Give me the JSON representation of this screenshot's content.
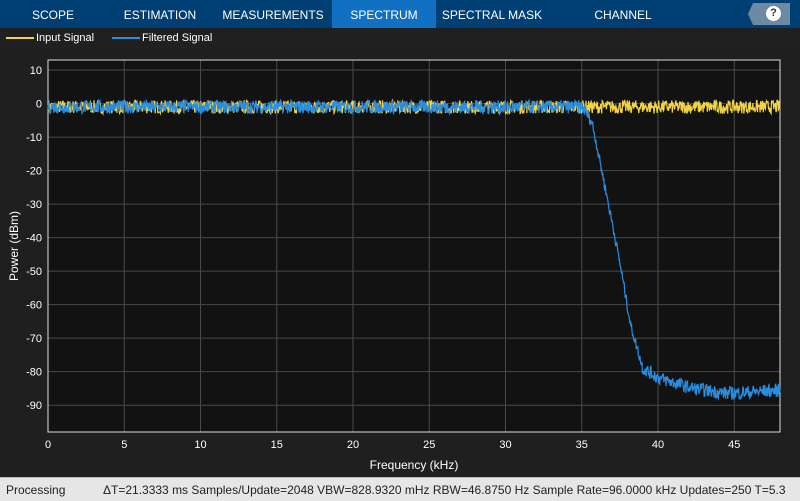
{
  "tabs": [
    {
      "label": "SCOPE"
    },
    {
      "label": "ESTIMATION"
    },
    {
      "label": "MEASUREMENTS"
    },
    {
      "label": "SPECTRUM",
      "active": true
    },
    {
      "label": "SPECTRAL MASK"
    },
    {
      "label": "CHANNEL MEASUREMENTS"
    }
  ],
  "help_icon": "question-mark-icon",
  "status": {
    "state": "Processing",
    "metrics": "ΔT=21.3333 ms  Samples/Update=2048  VBW=828.9320 mHz  RBW=46.8750 Hz  Sample Rate=96.0000 kHz  Updates=250  T=5.3"
  },
  "colors": {
    "input": "#f2d346",
    "filtered": "#2a8ee0",
    "plot_bg": "#121212",
    "grid": "#4a4a4a"
  },
  "chart_data": {
    "type": "line",
    "xlabel": "Frequency (kHz)",
    "ylabel": "Power (dBm)",
    "xlim": [
      0,
      48
    ],
    "ylim": [
      -98,
      13
    ],
    "grid": true,
    "legend": "top-left",
    "xticks": [
      0,
      5,
      10,
      15,
      20,
      25,
      30,
      35,
      40,
      45
    ],
    "yticks": [
      10,
      0,
      -10,
      -20,
      -30,
      -40,
      -50,
      -60,
      -70,
      -80,
      -90
    ],
    "series": [
      {
        "name": "Input Signal",
        "x": [
          0,
          48
        ],
        "y": [
          -1,
          -1
        ]
      },
      {
        "name": "Filtered Signal",
        "x": [
          0,
          35,
          35.2,
          35.7,
          36.4,
          37.1,
          37.6,
          38.2,
          39.0,
          40.1,
          42.3,
          44.6,
          48
        ],
        "y": [
          -1,
          -1,
          -2,
          -6,
          -22,
          -38,
          -50,
          -66,
          -79,
          -82,
          -85,
          -86.5,
          -85.5
        ]
      }
    ]
  }
}
